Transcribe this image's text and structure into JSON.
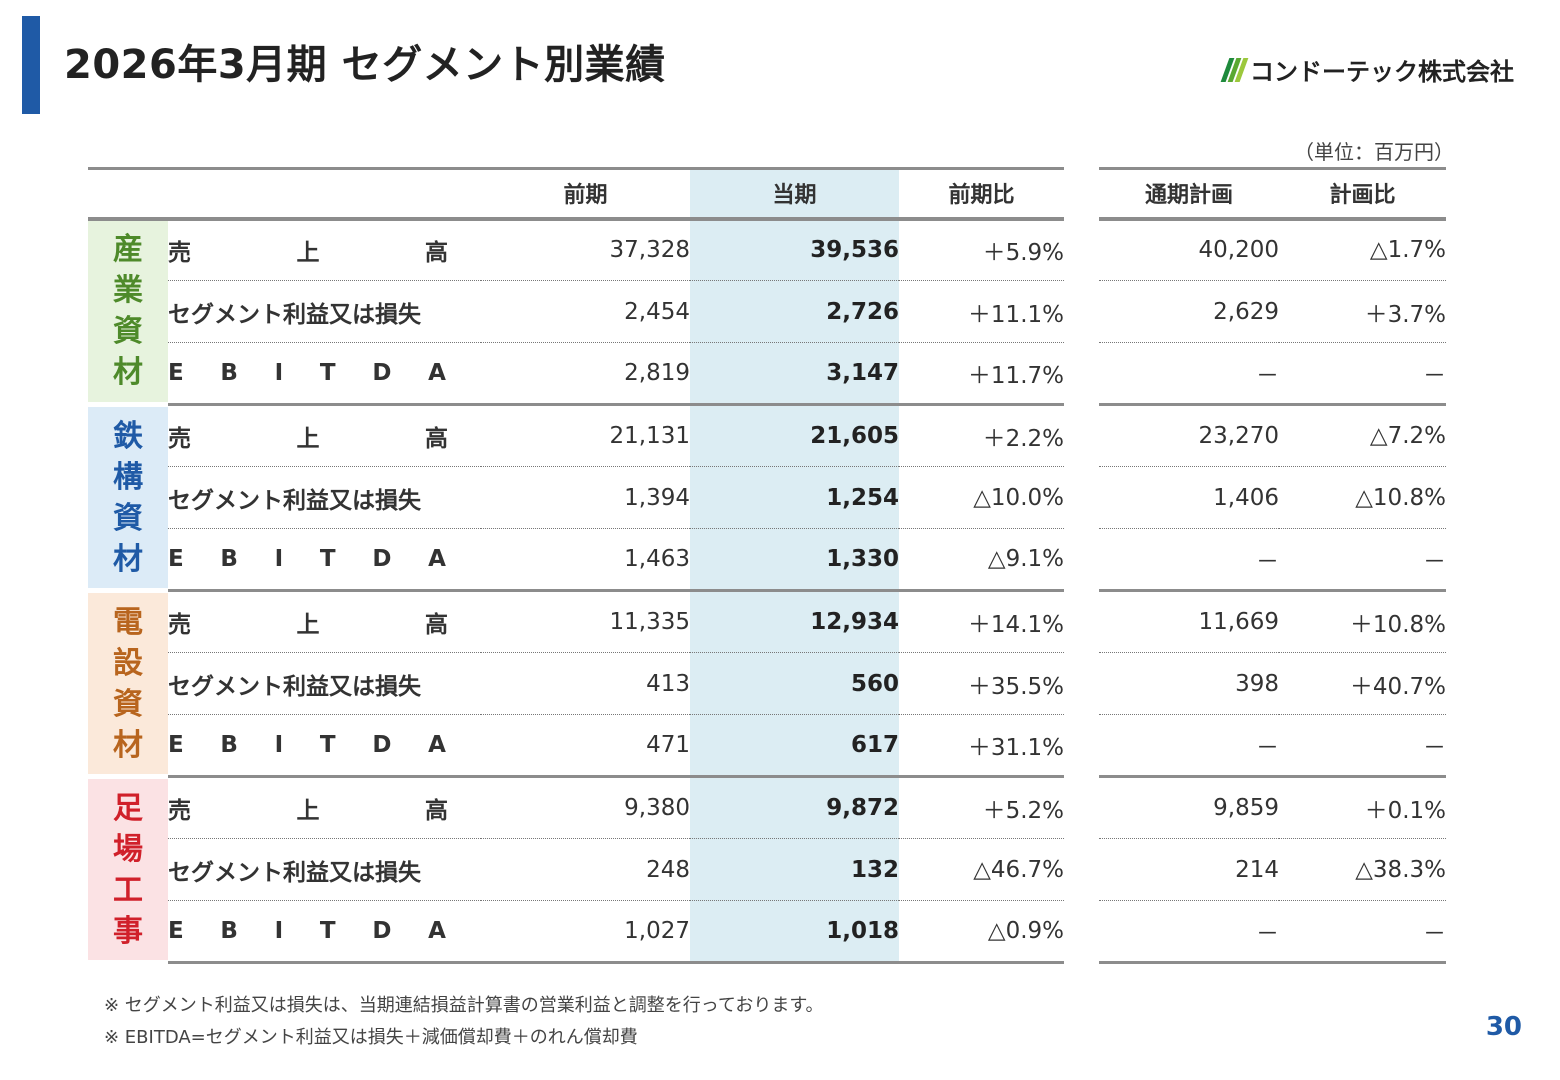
{
  "header": {
    "title": "2026年3月期 セグメント別業績",
    "logo_text": "コンドーテック株式会社",
    "logo_colors": [
      "#1e8a3c",
      "#5aa832",
      "#9cc83c"
    ],
    "accent_color": "#1f5aa6"
  },
  "unit_note": "（単位：百万円）",
  "columns": {
    "prev": "前期",
    "current": "当期",
    "yoy": "前期比",
    "plan": "通期計画",
    "vs_plan": "計画比"
  },
  "row_labels": {
    "sales": [
      "売",
      "上",
      "高"
    ],
    "segment_profit": "セグメント利益又は損失",
    "ebitda": [
      "E",
      "B",
      "I",
      "T",
      "D",
      "A"
    ]
  },
  "segments": [
    {
      "chars": [
        "産",
        "業",
        "資",
        "材"
      ],
      "bg_color": "#e7f3de",
      "text_color": "#4e8a2a",
      "rows": [
        {
          "prev": "37,328",
          "current": "39,536",
          "yoy": "＋5.9%",
          "plan": "40,200",
          "vs_plan": "△1.7%"
        },
        {
          "prev": "2,454",
          "current": "2,726",
          "yoy": "＋11.1%",
          "plan": "2,629",
          "vs_plan": "＋3.7%"
        },
        {
          "prev": "2,819",
          "current": "3,147",
          "yoy": "＋11.7%",
          "plan": "－",
          "vs_plan": "－"
        }
      ]
    },
    {
      "chars": [
        "鉄",
        "構",
        "資",
        "材"
      ],
      "bg_color": "#dcebf7",
      "text_color": "#1f5aa6",
      "rows": [
        {
          "prev": "21,131",
          "current": "21,605",
          "yoy": "＋2.2%",
          "plan": "23,270",
          "vs_plan": "△7.2%"
        },
        {
          "prev": "1,394",
          "current": "1,254",
          "yoy": "△10.0%",
          "plan": "1,406",
          "vs_plan": "△10.8%"
        },
        {
          "prev": "1,463",
          "current": "1,330",
          "yoy": "△9.1%",
          "plan": "－",
          "vs_plan": "－"
        }
      ]
    },
    {
      "chars": [
        "電",
        "設",
        "資",
        "材"
      ],
      "bg_color": "#fbe9da",
      "text_color": "#b8651e",
      "rows": [
        {
          "prev": "11,335",
          "current": "12,934",
          "yoy": "＋14.1%",
          "plan": "11,669",
          "vs_plan": "＋10.8%"
        },
        {
          "prev": "413",
          "current": "560",
          "yoy": "＋35.5%",
          "plan": "398",
          "vs_plan": "＋40.7%"
        },
        {
          "prev": "471",
          "current": "617",
          "yoy": "＋31.1%",
          "plan": "－",
          "vs_plan": "－"
        }
      ]
    },
    {
      "chars": [
        "足",
        "場",
        "工",
        "事"
      ],
      "bg_color": "#fbe2e4",
      "text_color": "#d0202a",
      "rows": [
        {
          "prev": "9,380",
          "current": "9,872",
          "yoy": "＋5.2%",
          "plan": "9,859",
          "vs_plan": "＋0.1%"
        },
        {
          "prev": "248",
          "current": "132",
          "yoy": "△46.7%",
          "plan": "214",
          "vs_plan": "△38.3%"
        },
        {
          "prev": "1,027",
          "current": "1,018",
          "yoy": "△0.9%",
          "plan": "－",
          "vs_plan": "－"
        }
      ]
    }
  ],
  "notes": [
    "※ セグメント利益又は損失は、当期連結損益計算書の営業利益と調整を行っております。",
    "※ EBITDA=セグメント利益又は損失＋減価償却費＋のれん償却費"
  ],
  "page_number": "30"
}
